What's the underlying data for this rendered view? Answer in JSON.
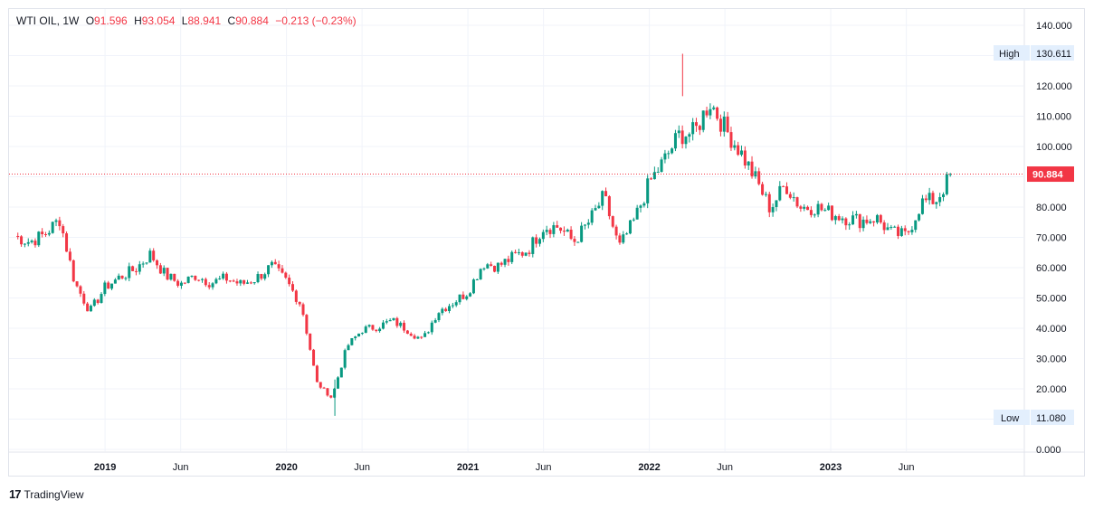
{
  "legend": {
    "symbol": "WTI OIL",
    "interval": "1W",
    "open_label": "O",
    "open": "91.596",
    "high_label": "H",
    "high": "93.054",
    "low_label": "L",
    "low": "88.941",
    "close_label": "C",
    "close": "90.884",
    "change": "−0.213 (−0.23%)"
  },
  "badges": {
    "high_label": "High",
    "high_value": "130.611",
    "low_label": "Low",
    "low_value": "11.080",
    "last_price": "90.884"
  },
  "brand": {
    "name": "TradingView",
    "logo_text": "17"
  },
  "colors": {
    "up": "#089981",
    "down": "#f23645",
    "grid": "#f0f3fa",
    "badge_bg": "#e3effd"
  },
  "chart_data": {
    "type": "candlestick",
    "title": "WTI OIL, 1W",
    "ylim": [
      0,
      140
    ],
    "y_ticks": [
      "140.000",
      "130.000",
      "120.000",
      "110.000",
      "100.000",
      "90.000",
      "80.000",
      "70.000",
      "60.000",
      "50.000",
      "40.000",
      "30.000",
      "20.000",
      "10.000",
      "0.000"
    ],
    "x_ticks": [
      "2019",
      "Jun",
      "2020",
      "Jun",
      "2021",
      "Jun",
      "2022",
      "Jun",
      "2023",
      "Jun"
    ],
    "last_close": 90.884,
    "period_high": 130.611,
    "period_low": 11.08,
    "grid": true,
    "trajectory": [
      [
        "2018-07",
        70.5
      ],
      [
        "2018-08",
        68.5
      ],
      [
        "2018-09",
        71.0
      ],
      [
        "2018-10",
        76.0
      ],
      [
        "2018-11",
        55.0
      ],
      [
        "2018-12",
        45.5
      ],
      [
        "2019-01",
        53.5
      ],
      [
        "2019-02",
        57.0
      ],
      [
        "2019-03",
        59.5
      ],
      [
        "2019-04",
        64.5
      ],
      [
        "2019-05",
        57.5
      ],
      [
        "2019-06",
        54.5
      ],
      [
        "2019-07",
        57.5
      ],
      [
        "2019-08",
        55.0
      ],
      [
        "2019-09",
        56.5
      ],
      [
        "2019-10",
        54.5
      ],
      [
        "2019-11",
        56.5
      ],
      [
        "2019-12",
        60.5
      ],
      [
        "2020-01",
        55.5
      ],
      [
        "2020-02",
        47.5
      ],
      [
        "2020-03",
        22.0
      ],
      [
        "2020-04",
        17.0
      ],
      [
        "2020-05",
        34.0
      ],
      [
        "2020-06",
        39.5
      ],
      [
        "2020-07",
        40.5
      ],
      [
        "2020-08",
        42.5
      ],
      [
        "2020-09",
        39.5
      ],
      [
        "2020-10",
        36.0
      ],
      [
        "2020-11",
        45.5
      ],
      [
        "2020-12",
        48.5
      ],
      [
        "2021-01",
        52.0
      ],
      [
        "2021-02",
        61.5
      ],
      [
        "2021-03",
        60.5
      ],
      [
        "2021-04",
        63.5
      ],
      [
        "2021-05",
        66.0
      ],
      [
        "2021-06",
        73.5
      ],
      [
        "2021-07",
        73.5
      ],
      [
        "2021-08",
        68.5
      ],
      [
        "2021-09",
        75.0
      ],
      [
        "2021-10",
        83.5
      ],
      [
        "2021-11",
        66.5
      ],
      [
        "2021-12",
        75.5
      ],
      [
        "2022-01",
        88.0
      ],
      [
        "2022-02",
        95.5
      ],
      [
        "2022-03",
        104.0
      ],
      [
        "2022-04",
        104.5
      ],
      [
        "2022-05",
        115.0
      ],
      [
        "2022-06",
        106.0
      ],
      [
        "2022-07",
        98.5
      ],
      [
        "2022-08",
        89.5
      ],
      [
        "2022-09",
        79.5
      ],
      [
        "2022-10",
        87.5
      ],
      [
        "2022-11",
        80.0
      ],
      [
        "2022-12",
        80.0
      ],
      [
        "2023-01",
        78.0
      ],
      [
        "2023-02",
        76.5
      ],
      [
        "2023-03",
        75.5
      ],
      [
        "2023-04",
        76.5
      ],
      [
        "2023-05",
        71.5
      ],
      [
        "2023-06",
        70.5
      ],
      [
        "2023-07",
        81.5
      ],
      [
        "2023-08",
        82.5
      ],
      [
        "2023-09",
        90.9
      ]
    ]
  }
}
